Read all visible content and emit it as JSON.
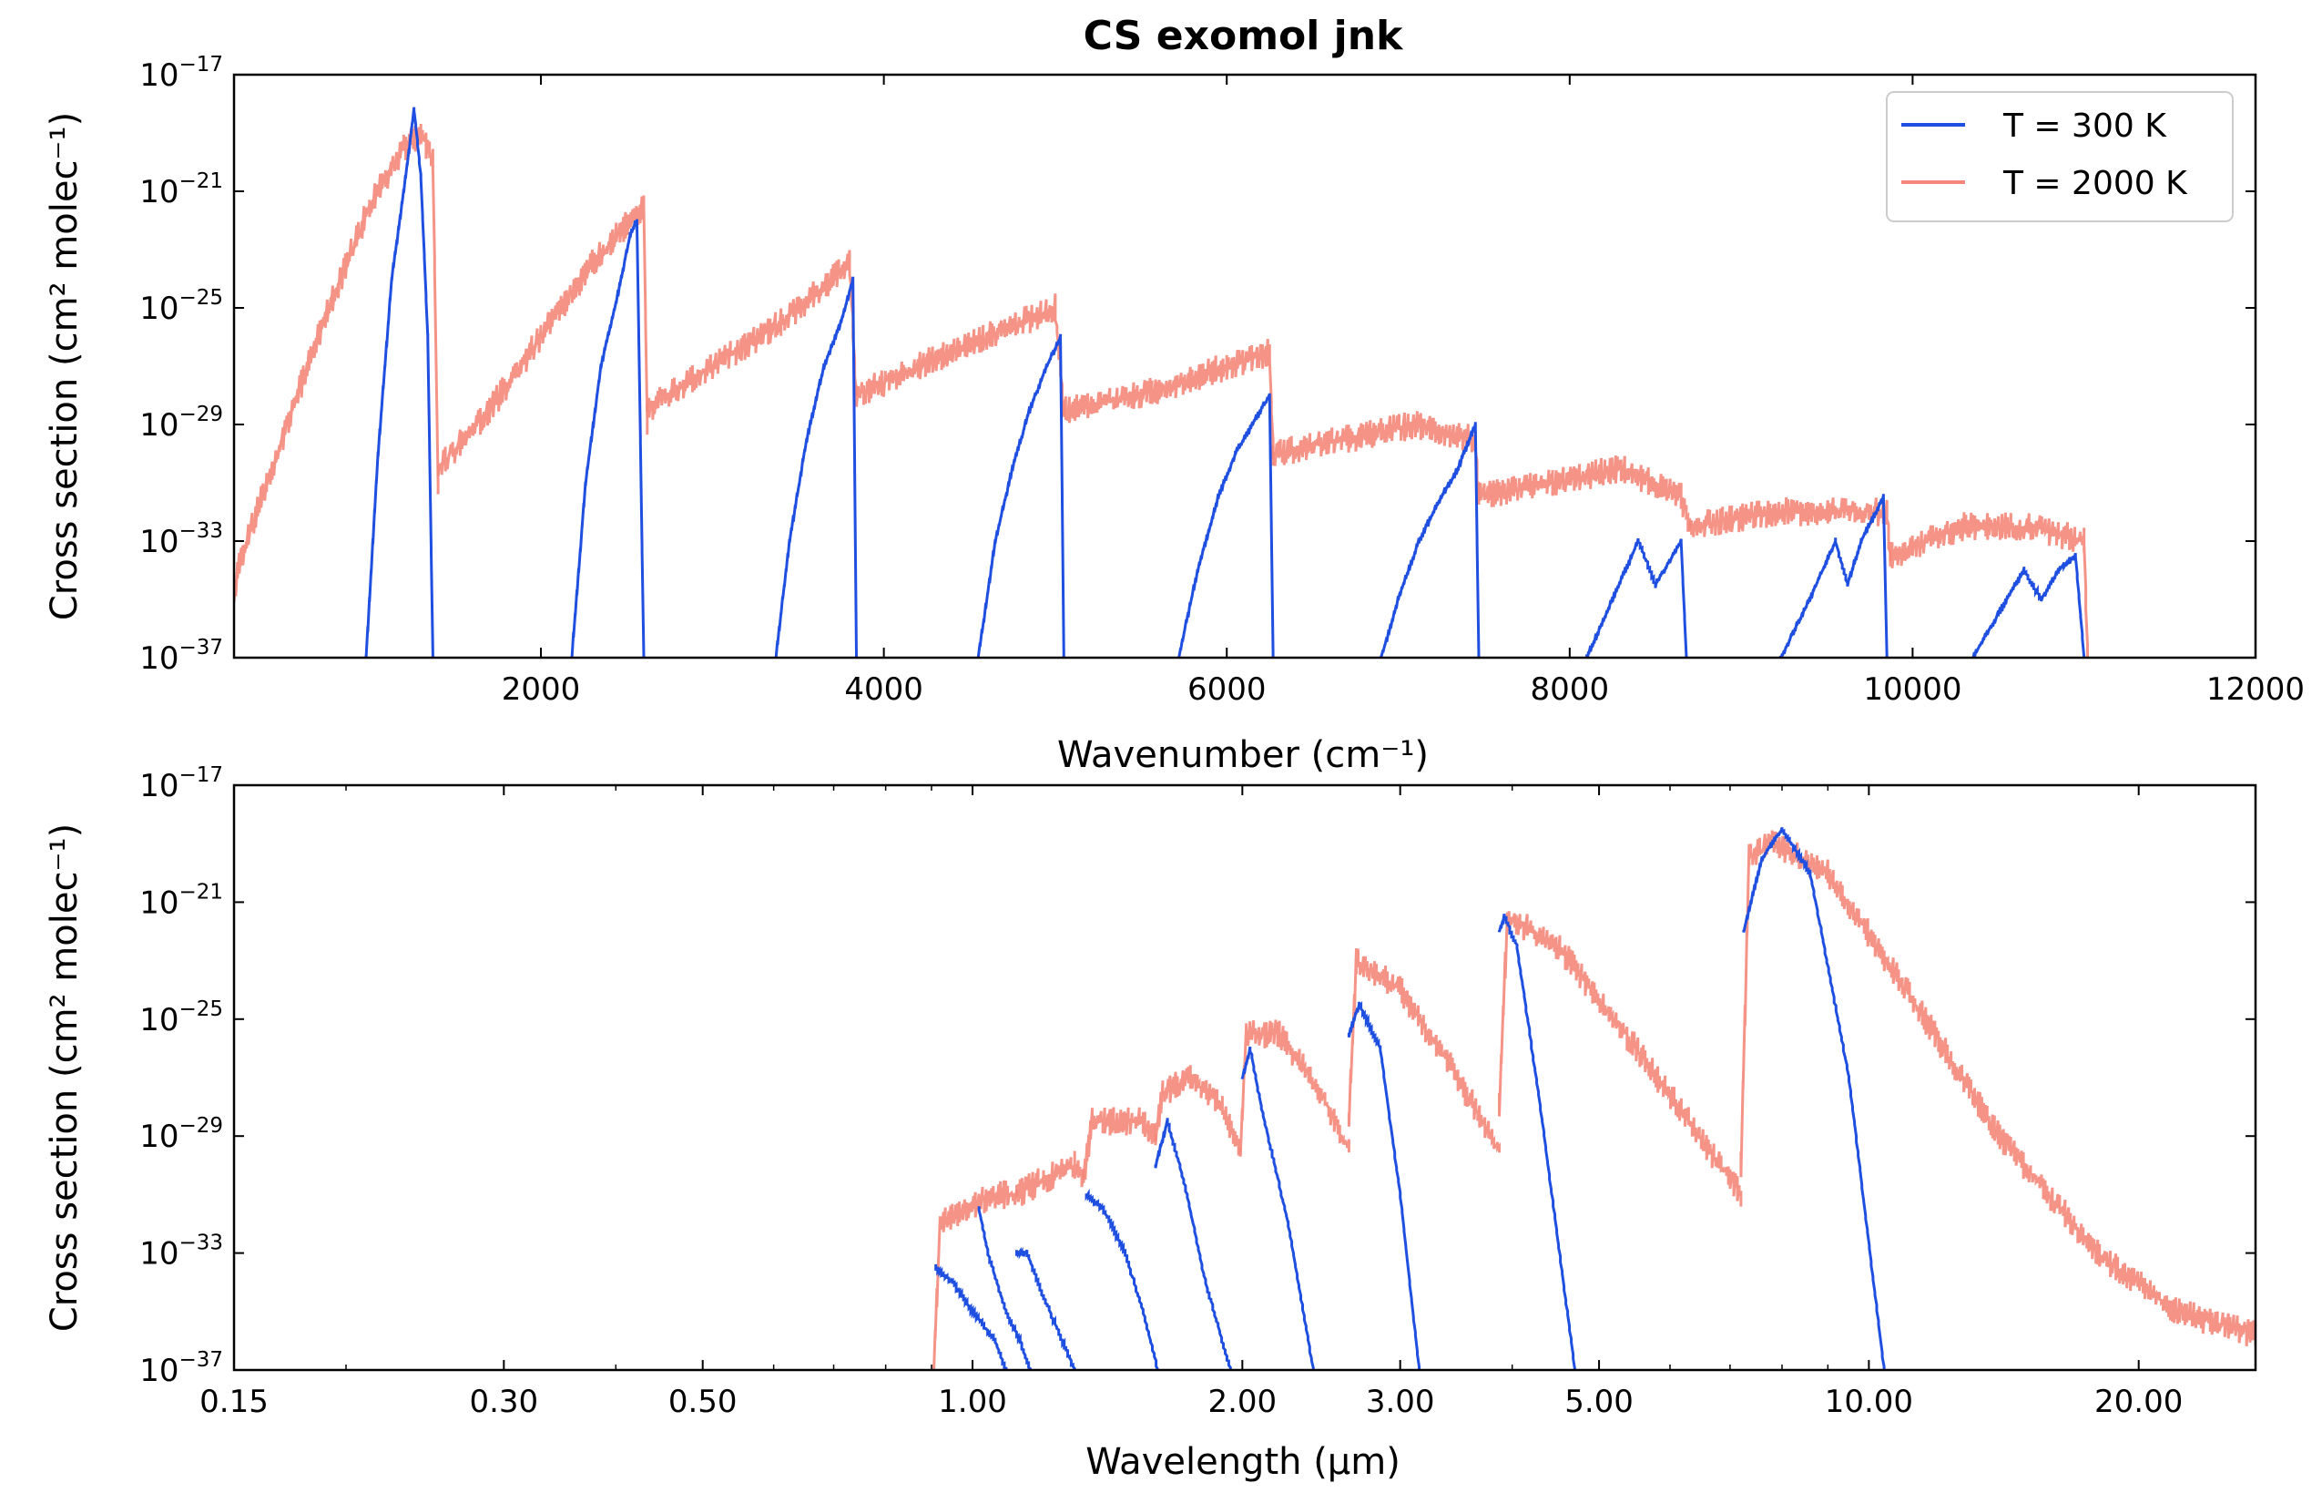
{
  "title": "CS exomol jnk",
  "colors": {
    "t300": "#1f4fe0",
    "t2000": "#f4877a"
  },
  "chart_data": [
    {
      "type": "line",
      "xlabel": "Wavenumber (cm⁻¹)",
      "ylabel": "Cross section (cm² molec⁻¹)",
      "xscale": "linear",
      "yscale": "log",
      "xlim": [
        210,
        12000
      ],
      "ylim_exponent": [
        -37,
        -17
      ],
      "xticks": [
        2000,
        4000,
        6000,
        8000,
        10000,
        12000
      ],
      "xtick_labels": [
        "2000",
        "4000",
        "6000",
        "8000",
        "10000",
        "12000"
      ],
      "yticks_exponent": [
        -37,
        -33,
        -29,
        -25,
        -21,
        -17
      ],
      "ytick_labels": [
        "10",
        "10",
        "10",
        "10",
        "10",
        "10"
      ],
      "ytick_exponent_labels": [
        "−37",
        "−33",
        "−29",
        "−25",
        "−21",
        "−17"
      ],
      "legend": {
        "placement": "top-right",
        "entries": [
          "T = 300 K",
          "T = 2000 K"
        ]
      },
      "series": [
        {
          "name": "T = 300 K",
          "bands_log10": [
            {
              "x": [
                980,
                1050,
                1130,
                1200,
                1260,
                1300,
                1340,
                1370
              ],
              "y": [
                -37,
                -30,
                -24,
                -21,
                -18.2,
                -20.5,
                -26,
                -37
              ]
            },
            {
              "x": [
                2180,
                2260,
                2350,
                2450,
                2520,
                2560,
                2600
              ],
              "y": [
                -37,
                -31,
                -27,
                -24.5,
                -22.5,
                -22,
                -37
              ]
            },
            {
              "x": [
                3370,
                3450,
                3550,
                3650,
                3750,
                3820,
                3840
              ],
              "y": [
                -37,
                -33,
                -29.5,
                -27,
                -25.5,
                -24,
                -37
              ]
            },
            {
              "x": [
                4550,
                4650,
                4750,
                4850,
                4950,
                5030,
                5050
              ],
              "y": [
                -37,
                -33,
                -30.5,
                -28.5,
                -27,
                -26,
                -37
              ]
            },
            {
              "x": [
                5720,
                5830,
                5950,
                6050,
                6150,
                6250,
                6270
              ],
              "y": [
                -37,
                -34,
                -31.5,
                -30,
                -29,
                -28,
                -37
              ]
            },
            {
              "x": [
                6900,
                7000,
                7120,
                7250,
                7350,
                7450,
                7470
              ],
              "y": [
                -37,
                -35,
                -33,
                -31.5,
                -30.5,
                -29,
                -37
              ]
            },
            {
              "x": [
                8100,
                8250,
                8400,
                8500,
                8550,
                8650,
                8680
              ],
              "y": [
                -37,
                -35,
                -33,
                -34.5,
                -34,
                -33,
                -37
              ]
            },
            {
              "x": [
                9230,
                9400,
                9550,
                9620,
                9700,
                9830,
                9850
              ],
              "y": [
                -37,
                -35,
                -33,
                -34.5,
                -33,
                -31.5,
                -37
              ]
            },
            {
              "x": [
                10350,
                10500,
                10650,
                10750,
                10850,
                10950,
                11000
              ],
              "y": [
                -37,
                -35.5,
                -34,
                -35,
                -34,
                -33.5,
                -37
              ]
            }
          ]
        },
        {
          "name": "T = 2000 K",
          "bands_log10": [
            {
              "x": [
                210,
                230,
                400,
                700,
                1000,
                1200,
                1300,
                1370,
                1400
              ],
              "y": [
                -35,
                -34,
                -31,
                -26,
                -21.5,
                -19.5,
                -19,
                -20,
                -31
              ]
            },
            {
              "x": [
                1400,
                1700,
                2000,
                2300,
                2600,
                2620
              ],
              "y": [
                -30.5,
                -28.5,
                -26,
                -23.5,
                -21.5,
                -29
              ]
            },
            {
              "x": [
                2620,
                3000,
                3400,
                3800,
                3840
              ],
              "y": [
                -28.5,
                -27,
                -25.5,
                -23.5,
                -28
              ]
            },
            {
              "x": [
                3840,
                4200,
                4600,
                5000,
                5050
              ],
              "y": [
                -28,
                -27,
                -26,
                -25,
                -28.5
              ]
            },
            {
              "x": [
                5050,
                5500,
                6000,
                6250,
                6270
              ],
              "y": [
                -28.5,
                -28,
                -27,
                -26.5,
                -30
              ]
            },
            {
              "x": [
                6270,
                6700,
                7100,
                7450,
                7470
              ],
              "y": [
                -30,
                -29.5,
                -29,
                -29.5,
                -31.5
              ]
            },
            {
              "x": [
                7470,
                7900,
                8300,
                8650,
                8700
              ],
              "y": [
                -31.5,
                -31,
                -30.5,
                -31.5,
                -32.5
              ]
            },
            {
              "x": [
                8700,
                9200,
                9600,
                9850,
                9870
              ],
              "y": [
                -32.5,
                -32,
                -32,
                -32,
                -33.5
              ]
            },
            {
              "x": [
                9870,
                10300,
                10700,
                11000,
                11020
              ],
              "y": [
                -33.5,
                -32.5,
                -32.5,
                -33,
                -37
              ]
            }
          ]
        }
      ]
    },
    {
      "type": "line",
      "xlabel": "Wavelength (µm)",
      "ylabel": "Cross section (cm² molec⁻¹)",
      "xscale": "log",
      "yscale": "log",
      "xlim": [
        0.15,
        27
      ],
      "ylim_exponent": [
        -37,
        -17
      ],
      "xticks": [
        0.15,
        0.3,
        0.5,
        1.0,
        2.0,
        3.0,
        5.0,
        10.0,
        20.0
      ],
      "xtick_labels": [
        "0.15",
        "0.30",
        "0.50",
        "1.00",
        "2.00",
        "3.00",
        "5.00",
        "10.00",
        "20.00"
      ],
      "yticks_exponent": [
        -37,
        -33,
        -29,
        -25,
        -21,
        -17
      ],
      "ytick_labels": [
        "10",
        "10",
        "10",
        "10",
        "10",
        "10"
      ],
      "ytick_exponent_labels": [
        "−37",
        "−33",
        "−29",
        "−25",
        "−21",
        "−17"
      ],
      "series": [
        {
          "name": "T = 300 K",
          "bands_log10": [
            {
              "x": [
                0.91,
                0.95,
                1.0,
                1.06,
                1.09
              ],
              "y": [
                -33.5,
                -34,
                -35,
                -36,
                -37
              ]
            },
            {
              "x": [
                1.017,
                1.04,
                1.09,
                1.13,
                1.16
              ],
              "y": [
                -31.5,
                -33,
                -35,
                -36,
                -37
              ]
            },
            {
              "x": [
                1.12,
                1.15,
                1.2,
                1.26,
                1.3
              ],
              "y": [
                -33,
                -33,
                -34.5,
                -36,
                -37
              ]
            },
            {
              "x": [
                1.34,
                1.4,
                1.48,
                1.55,
                1.61
              ],
              "y": [
                -31,
                -31.5,
                -33,
                -35,
                -37
              ]
            },
            {
              "x": [
                1.6,
                1.65,
                1.72,
                1.82,
                1.94
              ],
              "y": [
                -30,
                -28.5,
                -30.5,
                -34,
                -37
              ]
            },
            {
              "x": [
                2.0,
                2.04,
                2.1,
                2.25,
                2.4
              ],
              "y": [
                -27,
                -26,
                -28,
                -32,
                -37
              ]
            },
            {
              "x": [
                2.63,
                2.7,
                2.85,
                3.0,
                3.15
              ],
              "y": [
                -25.5,
                -24.5,
                -26,
                -31,
                -37
              ]
            },
            {
              "x": [
                3.87,
                3.92,
                4.05,
                4.3,
                4.7
              ],
              "y": [
                -22,
                -21.5,
                -22.5,
                -28,
                -37
              ]
            },
            {
              "x": [
                7.25,
                7.6,
                8.0,
                8.6,
                9.5,
                10.4
              ],
              "y": [
                -22,
                -19.5,
                -18.5,
                -20,
                -27,
                -37
              ]
            }
          ]
        },
        {
          "name": "T = 2000 K",
          "bands_log10": [
            {
              "x": [
                0.905,
                0.92,
                0.98,
                1.05,
                1.12
              ],
              "y": [
                -37,
                -32,
                -31.5,
                -31,
                -31
              ]
            },
            {
              "x": [
                1.12,
                1.2,
                1.3,
                1.33
              ],
              "y": [
                -31,
                -30.5,
                -30,
                -30.5
              ]
            },
            {
              "x": [
                1.33,
                1.36,
                1.45,
                1.55,
                1.6
              ],
              "y": [
                -30.5,
                -28.5,
                -28.5,
                -28.5,
                -29
              ]
            },
            {
              "x": [
                1.6,
                1.63,
                1.75,
                1.9,
                1.99
              ],
              "y": [
                -29,
                -27.5,
                -27,
                -28,
                -29.5
              ]
            },
            {
              "x": [
                1.99,
                2.02,
                2.2,
                2.45,
                2.63
              ],
              "y": [
                -29.5,
                -25.5,
                -25.5,
                -27.5,
                -29.5
              ]
            },
            {
              "x": [
                2.63,
                2.68,
                3.0,
                3.4,
                3.87
              ],
              "y": [
                -28.5,
                -23,
                -24,
                -26.5,
                -29.5
              ]
            },
            {
              "x": [
                3.87,
                3.95,
                4.5,
                5.5,
                7.2
              ],
              "y": [
                -28,
                -21.5,
                -22.5,
                -26,
                -31
              ]
            },
            {
              "x": [
                7.2,
                7.35,
                7.8,
                9.0,
                11.0,
                14.0,
                18.0,
                22.0,
                27.0
              ],
              "y": [
                -30,
                -19.5,
                -19,
                -20,
                -24,
                -29,
                -33,
                -35,
                -35.8
              ]
            }
          ]
        }
      ]
    }
  ]
}
